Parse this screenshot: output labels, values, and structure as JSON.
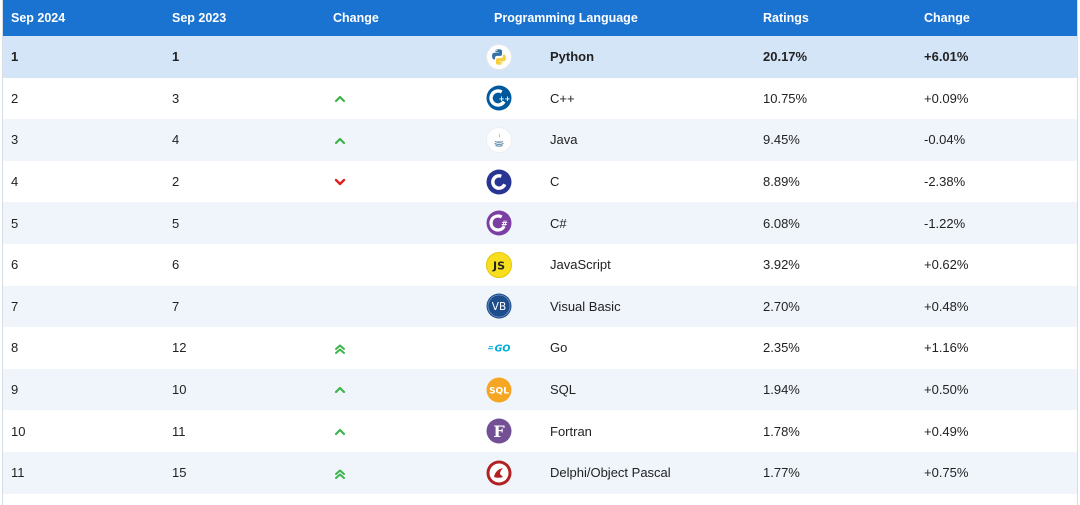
{
  "header": {
    "col_sep2024": "Sep 2024",
    "col_sep2023": "Sep 2023",
    "col_change": "Change",
    "col_language": "Programming Language",
    "col_ratings": "Ratings",
    "col_change_pct": "Change"
  },
  "rows": [
    {
      "rank_now": "1",
      "rank_prev": "1",
      "trend": "none",
      "logo": "python-logo-icon",
      "language": "Python",
      "rating": "20.17%",
      "change": "+6.01%"
    },
    {
      "rank_now": "2",
      "rank_prev": "3",
      "trend": "up",
      "logo": "cpp-logo-icon",
      "language": "C++",
      "rating": "10.75%",
      "change": "+0.09%"
    },
    {
      "rank_now": "3",
      "rank_prev": "4",
      "trend": "up",
      "logo": "java-logo-icon",
      "language": "Java",
      "rating": "9.45%",
      "change": "-0.04%"
    },
    {
      "rank_now": "4",
      "rank_prev": "2",
      "trend": "down",
      "logo": "c-logo-icon",
      "language": "C",
      "rating": "8.89%",
      "change": "-2.38%"
    },
    {
      "rank_now": "5",
      "rank_prev": "5",
      "trend": "none",
      "logo": "csharp-logo-icon",
      "language": "C#",
      "rating": "6.08%",
      "change": "-1.22%"
    },
    {
      "rank_now": "6",
      "rank_prev": "6",
      "trend": "none",
      "logo": "javascript-logo-icon",
      "language": "JavaScript",
      "rating": "3.92%",
      "change": "+0.62%"
    },
    {
      "rank_now": "7",
      "rank_prev": "7",
      "trend": "none",
      "logo": "visual-basic-logo-icon",
      "language": "Visual Basic",
      "rating": "2.70%",
      "change": "+0.48%"
    },
    {
      "rank_now": "8",
      "rank_prev": "12",
      "trend": "double-up",
      "logo": "go-logo-icon",
      "language": "Go",
      "rating": "2.35%",
      "change": "+1.16%"
    },
    {
      "rank_now": "9",
      "rank_prev": "10",
      "trend": "up",
      "logo": "sql-logo-icon",
      "language": "SQL",
      "rating": "1.94%",
      "change": "+0.50%"
    },
    {
      "rank_now": "10",
      "rank_prev": "11",
      "trend": "up",
      "logo": "fortran-logo-icon",
      "language": "Fortran",
      "rating": "1.78%",
      "change": "+0.49%"
    },
    {
      "rank_now": "11",
      "rank_prev": "15",
      "trend": "double-up",
      "logo": "delphi-logo-icon",
      "language": "Delphi/Object Pascal",
      "rating": "1.77%",
      "change": "+0.75%"
    }
  ],
  "logo_text": {
    "javascript": "JS",
    "visual_basic": "VB",
    "sql": "SQL",
    "fortran": "F",
    "go": "GO"
  },
  "colors": {
    "header_bg": "#1a73d1",
    "row_highlight": "#d4e5f7",
    "row_alt": "#eff5fb",
    "trend_up": "#3cb44b",
    "trend_down": "#e02020"
  }
}
